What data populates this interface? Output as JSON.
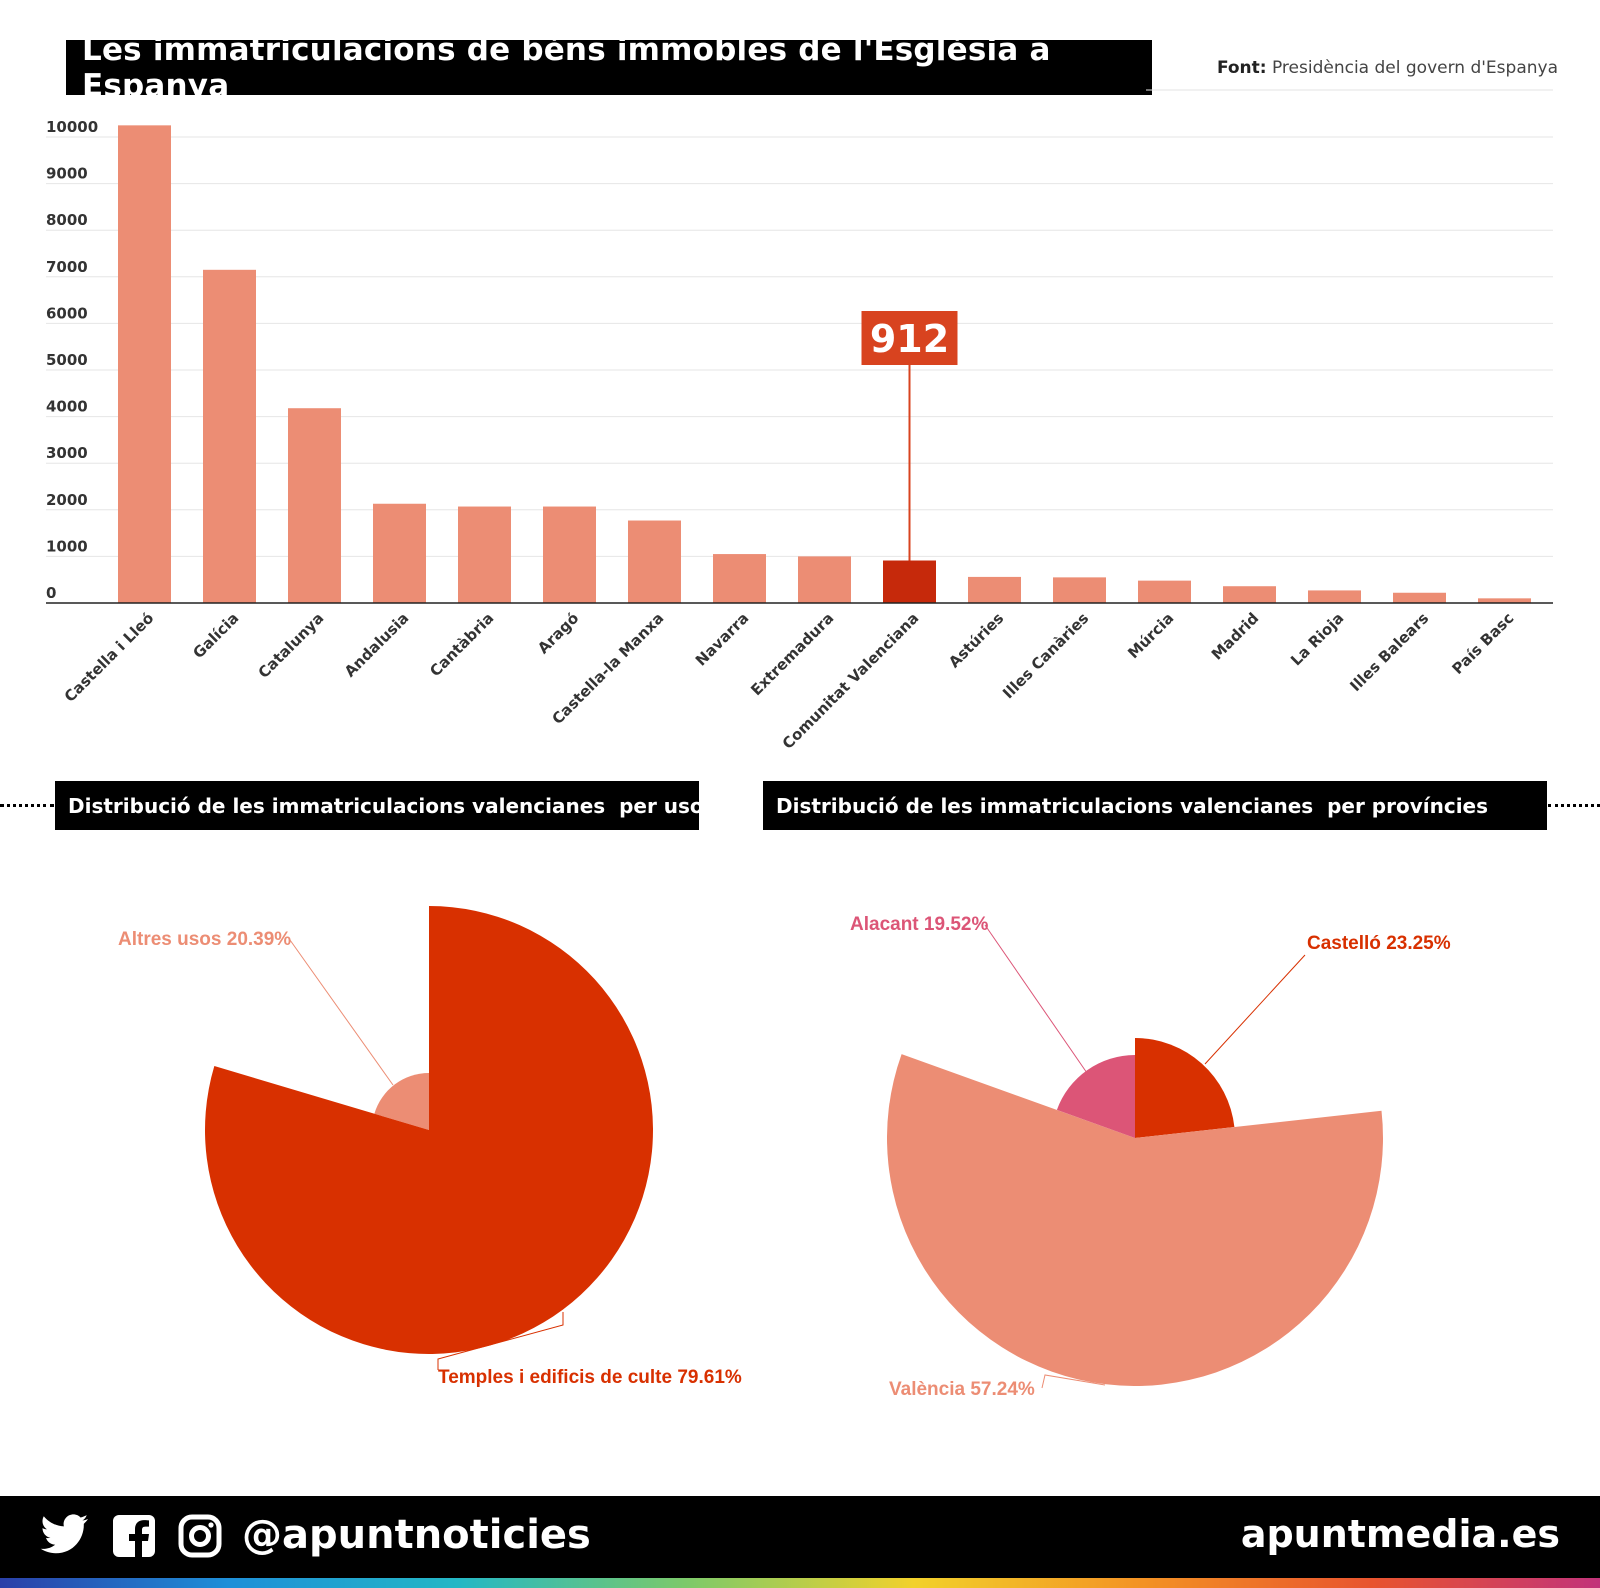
{
  "header": {
    "title": "Les immatriculacions de béns immobles de l'Església a Espanya",
    "source_label": "Font:",
    "source_text": "Presidència del govern d'Espanya"
  },
  "colors": {
    "bar": "#ec8d74",
    "highlight": "#c6290b",
    "callout": "#d8431f",
    "pie_main": "#d83000",
    "pie_light": "#ec8d74",
    "pie_pink": "#dc5577"
  },
  "chart_data": [
    {
      "type": "bar",
      "title": "Les immatriculacions de béns immobles de l'Església a Espanya",
      "categories": [
        "Castella i Lleó",
        "Galícia",
        "Catalunya",
        "Andalusia",
        "Cantàbria",
        "Aragó",
        "Castella-la Manxa",
        "Navarra",
        "Extremadura",
        "Comunitat Valenciana",
        "Astúries",
        "Illes Canàries",
        "Múrcia",
        "Madrid",
        "La Rioja",
        "Illes Balears",
        "País Basc"
      ],
      "values": [
        10250,
        7150,
        4180,
        2130,
        2070,
        2070,
        1770,
        1050,
        1000,
        912,
        560,
        550,
        480,
        360,
        270,
        220,
        100
      ],
      "highlight_category": "Comunitat Valenciana",
      "highlight_label": "912",
      "ylim": [
        0,
        10000
      ],
      "yticks": [
        0,
        1000,
        2000,
        3000,
        4000,
        5000,
        6000,
        7000,
        8000,
        9000,
        10000
      ],
      "grid": true
    },
    {
      "type": "pie",
      "title": "Distribució de les immatriculacions valencianes  per usos",
      "slices": [
        {
          "label": "Altres usos 20.39%",
          "value": 20.39,
          "color": "#ec8d74"
        },
        {
          "label": "Temples i edificis de culte 79.61%",
          "value": 79.61,
          "color": "#d83000"
        }
      ]
    },
    {
      "type": "pie",
      "title": "Distribució de les immatriculacions valencianes  per províncies",
      "slices": [
        {
          "label": "Castelló 23.25%",
          "value": 23.25,
          "color": "#d83000"
        },
        {
          "label": "València 57.24%",
          "value": 57.24,
          "color": "#ec8d74"
        },
        {
          "label": "Alacant 19.52%",
          "value": 19.52,
          "color": "#dc5577"
        }
      ]
    }
  ],
  "footer": {
    "handle": "@apuntnoticies",
    "site": "apuntmedia.es",
    "icons": [
      "twitter-icon",
      "facebook-icon",
      "instagram-icon"
    ]
  }
}
